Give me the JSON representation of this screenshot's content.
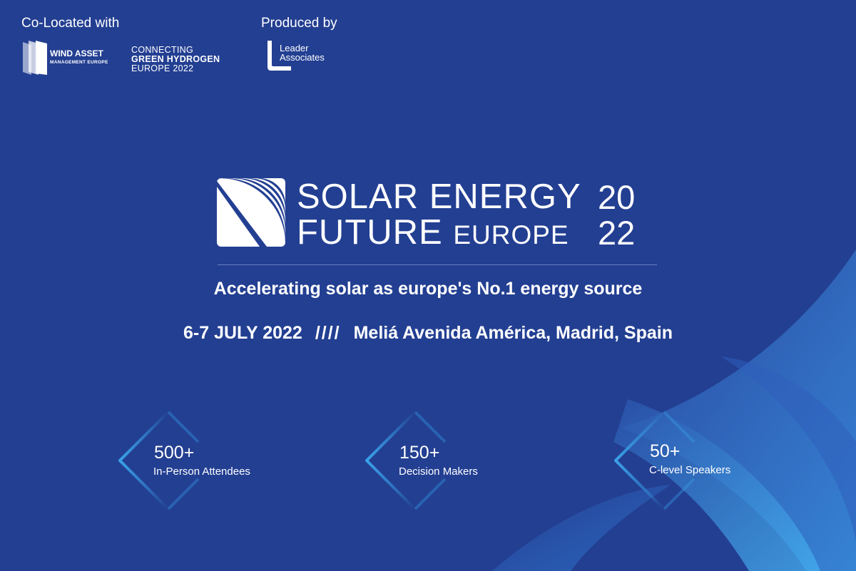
{
  "header": {
    "colocated_label": "Co-Located with",
    "produced_label": "Produced by",
    "wind_logo": {
      "line1": "WIND ASSET",
      "line2": "MANAGEMENT EUROPE"
    },
    "hydrogen_logo": {
      "line1": "CONNECTING",
      "line2": "GREEN HYDROGEN",
      "line3": "EUROPE 2022"
    },
    "leader_logo": {
      "line1": "Leader",
      "line2": "Associates"
    }
  },
  "brand": {
    "line1": "SOLAR ENERGY",
    "line2a": "FUTURE",
    "line2b": "EUROPE",
    "year_top": "20",
    "year_bottom": "22"
  },
  "tagline": "Accelerating solar as europe's No.1 energy source",
  "event": {
    "date": "6-7 JULY 2022",
    "separator": "////",
    "venue": "Meliá Avenida América, Madrid, Spain"
  },
  "stats": [
    {
      "value": "500+",
      "label": "In-Person Attendees"
    },
    {
      "value": "150+",
      "label": "Decision Makers"
    },
    {
      "value": "50+",
      "label": "C-level Speakers"
    }
  ],
  "colors": {
    "background": "#233f92",
    "accent_light": "#3aa3ea",
    "text": "#ffffff"
  }
}
